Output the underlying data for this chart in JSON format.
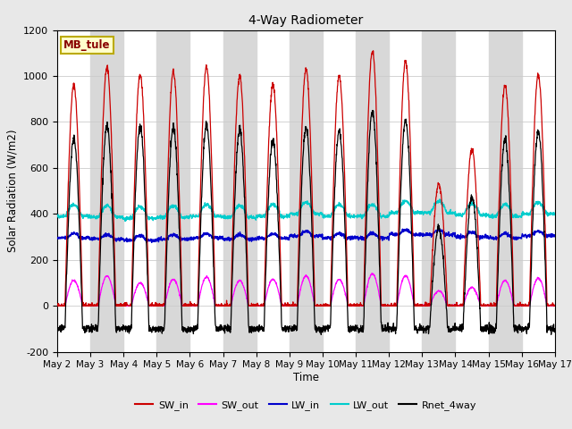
{
  "title": "4-Way Radiometer",
  "xlabel": "Time",
  "ylabel": "Solar Radiation (W/m2)",
  "site_label": "MB_tule",
  "ylim": [
    -200,
    1200
  ],
  "yticks": [
    -200,
    0,
    200,
    400,
    600,
    800,
    1000,
    1200
  ],
  "x_labels": [
    "May 2",
    "May 3",
    "May 4",
    "May 5",
    "May 6",
    "May 7",
    "May 8",
    "May 9",
    "May 10",
    "May 11",
    "May 12",
    "May 13",
    "May 14",
    "May 15",
    "May 16",
    "May 17"
  ],
  "n_days": 15,
  "colors": {
    "SW_in": "#cc0000",
    "SW_out": "#ff00ff",
    "LW_in": "#0000cc",
    "LW_out": "#00cccc",
    "Rnet_4way": "#000000"
  },
  "sw_in_peaks": [
    960,
    1040,
    1005,
    1020,
    1040,
    1000,
    960,
    1030,
    1000,
    1110,
    1065,
    530,
    680,
    960,
    1005
  ],
  "sw_out_peaks": [
    110,
    130,
    100,
    115,
    125,
    110,
    115,
    130,
    115,
    140,
    130,
    65,
    80,
    110,
    120
  ],
  "lw_in_base": [
    295,
    290,
    285,
    290,
    295,
    290,
    295,
    305,
    295,
    295,
    310,
    310,
    300,
    295,
    305
  ],
  "lw_out_base": [
    390,
    385,
    380,
    385,
    390,
    385,
    390,
    400,
    390,
    390,
    405,
    405,
    395,
    390,
    400
  ],
  "bg_color": "#e8e8e8",
  "plot_bg": "#ffffff",
  "band_color": "#d8d8d8",
  "figsize": [
    6.4,
    4.8
  ],
  "dpi": 100
}
